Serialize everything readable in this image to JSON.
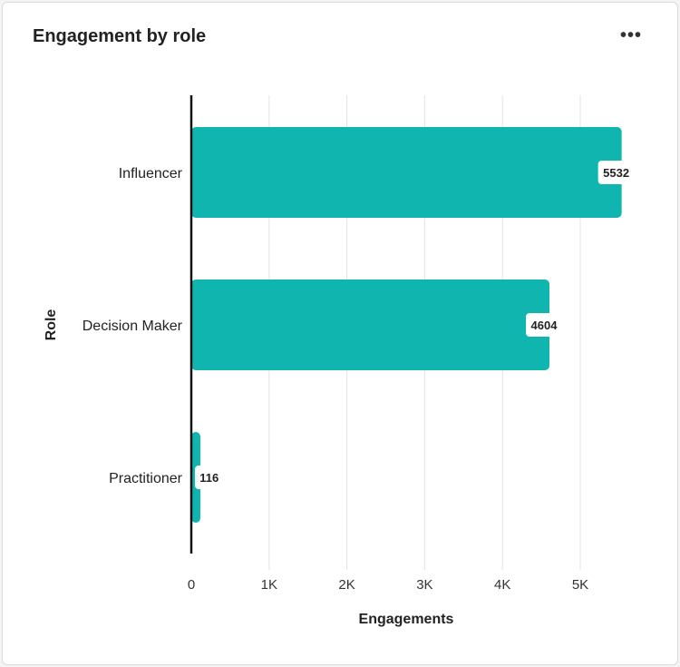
{
  "card": {
    "title": "Engagement by role",
    "menu_icon": "more-horizontal-icon"
  },
  "chart_data": {
    "type": "bar",
    "orientation": "horizontal",
    "categories": [
      "Influencer",
      "Decision Maker",
      "Practitioner"
    ],
    "values": [
      5532,
      4604,
      116
    ],
    "xlabel": "Engagements",
    "ylabel": "Role",
    "xlim": [
      0,
      5500
    ],
    "xticks": [
      0,
      1000,
      2000,
      3000,
      4000,
      5000
    ],
    "xtick_labels": [
      "0",
      "1K",
      "2K",
      "3K",
      "4K",
      "5K"
    ],
    "grid": "vertical",
    "data_labels": true,
    "bar_color": "#0fb5ae"
  }
}
